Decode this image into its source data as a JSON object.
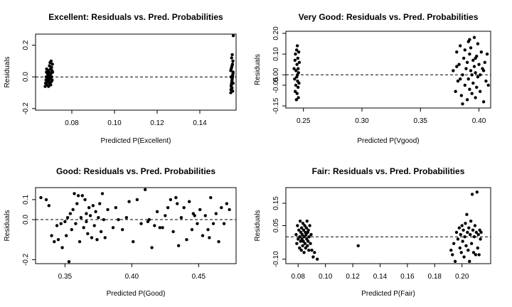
{
  "colors": {
    "background": "#ffffff",
    "points": "#000000",
    "axes": "#000000",
    "reference_line": "#000000"
  },
  "chart_data": [
    {
      "type": "scatter",
      "title": "Excellent: Residuals vs. Pred. Probabilities",
      "xlabel": "Predicted P(Excellent)",
      "ylabel": "Residuals",
      "xlim": [
        0.063,
        0.157
      ],
      "ylim": [
        -0.21,
        0.27
      ],
      "xticks": [
        "0.08",
        "0.10",
        "0.12",
        "0.14"
      ],
      "yticks": [
        "-0.2",
        "0.0",
        "0.2"
      ],
      "reference_line": {
        "y": 0,
        "style": "dashed"
      },
      "grid": false,
      "points": [
        [
          0.0675,
          -0.06
        ],
        [
          0.0677,
          -0.04
        ],
        [
          0.0679,
          -0.02
        ],
        [
          0.068,
          0.0
        ],
        [
          0.0681,
          0.03
        ],
        [
          0.0682,
          0.05
        ],
        [
          0.0684,
          -0.05
        ],
        [
          0.0685,
          -0.01
        ],
        [
          0.0686,
          0.02
        ],
        [
          0.0687,
          -0.03
        ],
        [
          0.0689,
          0.01
        ],
        [
          0.069,
          0.04
        ],
        [
          0.0691,
          -0.06
        ],
        [
          0.0692,
          -0.02
        ],
        [
          0.0693,
          0.0
        ],
        [
          0.0694,
          0.03
        ],
        [
          0.0695,
          0.07
        ],
        [
          0.0696,
          -0.04
        ],
        [
          0.0697,
          0.01
        ],
        [
          0.0698,
          0.09
        ],
        [
          0.0699,
          -0.01
        ],
        [
          0.07,
          0.05
        ],
        [
          0.0701,
          -0.05
        ],
        [
          0.0702,
          0.02
        ],
        [
          0.0703,
          0.1
        ],
        [
          0.0704,
          -0.03
        ],
        [
          0.0705,
          0.06
        ],
        [
          0.0706,
          0.0
        ],
        [
          0.0707,
          0.04
        ],
        [
          0.0708,
          -0.02
        ],
        [
          0.0709,
          0.08
        ],
        [
          0.071,
          0.03
        ],
        [
          0.1545,
          -0.1
        ],
        [
          0.1546,
          -0.08
        ],
        [
          0.1547,
          -0.06
        ],
        [
          0.1548,
          -0.05
        ],
        [
          0.1549,
          -0.04
        ],
        [
          0.155,
          -0.03
        ],
        [
          0.1551,
          -0.02
        ],
        [
          0.1552,
          -0.01
        ],
        [
          0.1553,
          0.0
        ],
        [
          0.1554,
          0.01
        ],
        [
          0.1555,
          0.02
        ],
        [
          0.1556,
          0.03
        ],
        [
          0.1545,
          0.04
        ],
        [
          0.1547,
          0.05
        ],
        [
          0.1549,
          0.06
        ],
        [
          0.1551,
          0.07
        ],
        [
          0.1553,
          0.08
        ],
        [
          0.1555,
          0.1
        ],
        [
          0.1549,
          0.12
        ],
        [
          0.1552,
          0.14
        ],
        [
          0.1551,
          -0.07
        ],
        [
          0.1554,
          -0.09
        ],
        [
          0.1546,
          0.0
        ],
        [
          0.1556,
          -0.04
        ],
        [
          0.1557,
          0.26
        ]
      ]
    },
    {
      "type": "scatter",
      "title": "Very Good: Residuals vs. Pred. Probabilities",
      "xlabel": "Predicted P(Vgood)",
      "ylabel": "Residuals",
      "xlim": [
        0.235,
        0.41
      ],
      "ylim": [
        -0.16,
        0.21
      ],
      "xticks": [
        "0.25",
        "0.30",
        "0.35",
        "0.40"
      ],
      "yticks": [
        "-0.15",
        "-0.05",
        "0.00",
        "0.10",
        "0.20"
      ],
      "reference_line": {
        "y": 0,
        "style": "dashed"
      },
      "grid": false,
      "points": [
        [
          0.242,
          0.03
        ],
        [
          0.2425,
          -0.02
        ],
        [
          0.2428,
          0.07
        ],
        [
          0.243,
          -0.08
        ],
        [
          0.2432,
          0.1
        ],
        [
          0.2435,
          -0.05
        ],
        [
          0.2437,
          0.02
        ],
        [
          0.244,
          -0.12
        ],
        [
          0.2442,
          0.12
        ],
        [
          0.2443,
          -0.01
        ],
        [
          0.2445,
          0.05
        ],
        [
          0.2446,
          -0.09
        ],
        [
          0.2448,
          0.14
        ],
        [
          0.2449,
          0.0
        ],
        [
          0.245,
          -0.03
        ],
        [
          0.2452,
          0.08
        ],
        [
          0.2454,
          -0.06
        ],
        [
          0.2455,
          0.03
        ],
        [
          0.2457,
          -0.11
        ],
        [
          0.2458,
          0.01
        ],
        [
          0.246,
          0.11
        ],
        [
          0.2462,
          -0.04
        ],
        [
          0.2465,
          0.06
        ],
        [
          0.378,
          0.02
        ],
        [
          0.38,
          -0.08
        ],
        [
          0.381,
          0.11
        ],
        [
          0.382,
          -0.03
        ],
        [
          0.383,
          0.05
        ],
        [
          0.384,
          0.14
        ],
        [
          0.385,
          -0.1
        ],
        [
          0.386,
          0.0
        ],
        [
          0.387,
          0.08
        ],
        [
          0.388,
          -0.05
        ],
        [
          0.388,
          0.12
        ],
        [
          0.389,
          0.03
        ],
        [
          0.39,
          -0.12
        ],
        [
          0.39,
          0.06
        ],
        [
          0.391,
          0.16
        ],
        [
          0.391,
          -0.02
        ],
        [
          0.392,
          0.1
        ],
        [
          0.392,
          -0.07
        ],
        [
          0.393,
          0.02
        ],
        [
          0.393,
          0.13
        ],
        [
          0.394,
          -0.09
        ],
        [
          0.394,
          0.0
        ],
        [
          0.395,
          0.07
        ],
        [
          0.395,
          -0.04
        ],
        [
          0.396,
          0.18
        ],
        [
          0.396,
          0.04
        ],
        [
          0.397,
          -0.11
        ],
        [
          0.397,
          0.01
        ],
        [
          0.398,
          0.09
        ],
        [
          0.398,
          -0.06
        ],
        [
          0.399,
          0.15
        ],
        [
          0.399,
          -0.01
        ],
        [
          0.4,
          0.05
        ],
        [
          0.401,
          -0.08
        ],
        [
          0.402,
          0.11
        ],
        [
          0.403,
          0.03
        ],
        [
          0.404,
          -0.13
        ],
        [
          0.405,
          0.06
        ],
        [
          0.406,
          -0.03
        ],
        [
          0.407,
          0.1
        ],
        [
          0.408,
          -0.05
        ],
        [
          0.381,
          0.04
        ],
        [
          0.386,
          -0.14
        ],
        [
          0.392,
          0.17
        ],
        [
          0.397,
          0.08
        ],
        [
          0.401,
          0.0
        ],
        [
          0.404,
          0.02
        ],
        [
          0.384,
          -0.02
        ]
      ]
    },
    {
      "type": "scatter",
      "title": "Good: Residuals vs. Pred. Probabilities",
      "xlabel": "Predicted P(Good)",
      "ylabel": "Residuals",
      "xlim": [
        0.328,
        0.478
      ],
      "ylim": [
        -0.22,
        0.16
      ],
      "xticks": [
        "0.35",
        "0.40",
        "0.45"
      ],
      "yticks": [
        "-0.2",
        "0.0",
        "0.1"
      ],
      "reference_line": {
        "y": 0,
        "style": "dashed"
      },
      "grid": false,
      "points": [
        [
          0.332,
          0.11
        ],
        [
          0.336,
          0.1
        ],
        [
          0.338,
          0.07
        ],
        [
          0.34,
          -0.08
        ],
        [
          0.342,
          -0.11
        ],
        [
          0.344,
          -0.03
        ],
        [
          0.345,
          -0.1
        ],
        [
          0.347,
          -0.02
        ],
        [
          0.348,
          -0.14
        ],
        [
          0.35,
          -0.01
        ],
        [
          0.351,
          -0.08
        ],
        [
          0.352,
          0.01
        ],
        [
          0.353,
          -0.21
        ],
        [
          0.354,
          0.03
        ],
        [
          0.355,
          -0.05
        ],
        [
          0.356,
          0.05
        ],
        [
          0.357,
          0.13
        ],
        [
          0.358,
          -0.02
        ],
        [
          0.359,
          0.08
        ],
        [
          0.36,
          0.12
        ],
        [
          0.361,
          -0.11
        ],
        [
          0.362,
          0.01
        ],
        [
          0.363,
          0.12
        ],
        [
          0.364,
          -0.04
        ],
        [
          0.365,
          0.1
        ],
        [
          0.366,
          0.03
        ],
        [
          0.367,
          -0.07
        ],
        [
          0.368,
          0.06
        ],
        [
          0.369,
          0.02
        ],
        [
          0.37,
          -0.09
        ],
        [
          0.371,
          0.07
        ],
        [
          0.372,
          -0.03
        ],
        [
          0.373,
          0.04
        ],
        [
          0.374,
          -0.1
        ],
        [
          0.375,
          0.01
        ],
        [
          0.376,
          0.08
        ],
        [
          0.377,
          -0.06
        ],
        [
          0.378,
          0.13
        ],
        [
          0.379,
          0.0
        ],
        [
          0.38,
          -0.09
        ],
        [
          0.382,
          0.05
        ],
        [
          0.386,
          -0.04
        ],
        [
          0.39,
          0.0
        ],
        [
          0.393,
          -0.05
        ],
        [
          0.396,
          0.01
        ],
        [
          0.398,
          0.09
        ],
        [
          0.401,
          -0.11
        ],
        [
          0.404,
          0.1
        ],
        [
          0.407,
          -0.02
        ],
        [
          0.41,
          0.15
        ],
        [
          0.413,
          0.0
        ],
        [
          0.415,
          -0.14
        ],
        [
          0.417,
          -0.03
        ],
        [
          0.419,
          0.04
        ],
        [
          0.421,
          -0.04
        ],
        [
          0.423,
          -0.04
        ],
        [
          0.425,
          0.02
        ],
        [
          0.427,
          0.06
        ],
        [
          0.429,
          0.1
        ],
        [
          0.431,
          -0.06
        ],
        [
          0.433,
          0.11
        ],
        [
          0.435,
          -0.13
        ],
        [
          0.437,
          0.01
        ],
        [
          0.439,
          0.06
        ],
        [
          0.441,
          -0.1
        ],
        [
          0.443,
          0.09
        ],
        [
          0.445,
          -0.05
        ],
        [
          0.447,
          0.02
        ],
        [
          0.449,
          -0.02
        ],
        [
          0.451,
          0.05
        ],
        [
          0.453,
          -0.08
        ],
        [
          0.455,
          0.02
        ],
        [
          0.457,
          -0.05
        ],
        [
          0.459,
          0.11
        ],
        [
          0.461,
          -0.02
        ],
        [
          0.463,
          0.03
        ],
        [
          0.465,
          -0.11
        ],
        [
          0.467,
          0.06
        ],
        [
          0.469,
          -0.02
        ],
        [
          0.471,
          0.08
        ],
        [
          0.473,
          0.05
        ],
        [
          0.458,
          -0.09
        ],
        [
          0.446,
          0.03
        ],
        [
          0.434,
          0.08
        ],
        [
          0.412,
          -0.01
        ],
        [
          0.388,
          0.06
        ],
        [
          0.366,
          -0.01
        ]
      ]
    },
    {
      "type": "scatter",
      "title": "Fair: Residuals vs. Pred. Probabilities",
      "xlabel": "Predicted P(Fair)",
      "ylabel": "Residuals",
      "xlim": [
        0.071,
        0.221
      ],
      "ylim": [
        -0.12,
        0.22
      ],
      "xticks": [
        "0.08",
        "0.10",
        "0.12",
        "0.14",
        "0.16",
        "0.18",
        "0.20"
      ],
      "yticks": [
        "-0.10",
        "0.05",
        "0.15"
      ],
      "reference_line": {
        "y": 0,
        "style": "dashed"
      },
      "grid": false,
      "points": [
        [
          0.0785,
          0.01
        ],
        [
          0.079,
          -0.03
        ],
        [
          0.0795,
          0.05
        ],
        [
          0.08,
          -0.01
        ],
        [
          0.0805,
          0.03
        ],
        [
          0.081,
          -0.05
        ],
        [
          0.0812,
          0.0
        ],
        [
          0.0815,
          0.07
        ],
        [
          0.0818,
          -0.02
        ],
        [
          0.082,
          0.02
        ],
        [
          0.0823,
          -0.06
        ],
        [
          0.0825,
          0.04
        ],
        [
          0.0828,
          -0.01
        ],
        [
          0.083,
          0.01
        ],
        [
          0.0833,
          -0.04
        ],
        [
          0.0835,
          0.06
        ],
        [
          0.0838,
          -0.02
        ],
        [
          0.084,
          0.03
        ],
        [
          0.0843,
          -0.07
        ],
        [
          0.0845,
          0.0
        ],
        [
          0.0848,
          0.05
        ],
        [
          0.085,
          -0.03
        ],
        [
          0.0853,
          0.02
        ],
        [
          0.0855,
          -0.05
        ],
        [
          0.0858,
          0.01
        ],
        [
          0.086,
          0.04
        ],
        [
          0.0863,
          -0.01
        ],
        [
          0.0865,
          0.07
        ],
        [
          0.0868,
          -0.04
        ],
        [
          0.087,
          0.02
        ],
        [
          0.0873,
          -0.02
        ],
        [
          0.0875,
          0.03
        ],
        [
          0.0878,
          -0.06
        ],
        [
          0.088,
          0.0
        ],
        [
          0.0885,
          0.05
        ],
        [
          0.089,
          -0.03
        ],
        [
          0.0895,
          0.01
        ],
        [
          0.09,
          -0.06
        ],
        [
          0.091,
          -0.09
        ],
        [
          0.092,
          -0.07
        ],
        [
          0.094,
          -0.1
        ],
        [
          0.124,
          -0.04
        ],
        [
          0.192,
          -0.06
        ],
        [
          0.193,
          -0.08
        ],
        [
          0.194,
          -0.03
        ],
        [
          0.195,
          -0.11
        ],
        [
          0.196,
          0.02
        ],
        [
          0.197,
          -0.01
        ],
        [
          0.198,
          0.04
        ],
        [
          0.1985,
          -0.05
        ],
        [
          0.199,
          0.01
        ],
        [
          0.1995,
          -0.07
        ],
        [
          0.2,
          0.05
        ],
        [
          0.2005,
          -0.02
        ],
        [
          0.201,
          0.03
        ],
        [
          0.2015,
          -0.09
        ],
        [
          0.202,
          0.0
        ],
        [
          0.2025,
          0.06
        ],
        [
          0.203,
          -0.04
        ],
        [
          0.2035,
          0.1
        ],
        [
          0.204,
          0.02
        ],
        [
          0.2045,
          -0.06
        ],
        [
          0.205,
          0.04
        ],
        [
          0.2055,
          -0.11
        ],
        [
          0.206,
          0.01
        ],
        [
          0.2065,
          0.07
        ],
        [
          0.207,
          -0.03
        ],
        [
          0.2075,
          0.19
        ],
        [
          0.208,
          0.03
        ],
        [
          0.2085,
          -0.07
        ],
        [
          0.209,
          0.0
        ],
        [
          0.2095,
          0.05
        ],
        [
          0.21,
          -0.08
        ],
        [
          0.2105,
          0.02
        ],
        [
          0.211,
          0.2
        ],
        [
          0.2115,
          -0.05
        ],
        [
          0.212,
          0.01
        ],
        [
          0.2125,
          -0.08
        ],
        [
          0.213,
          0.03
        ],
        [
          0.2135,
          -0.01
        ],
        [
          0.214,
          0.02
        ]
      ]
    }
  ]
}
